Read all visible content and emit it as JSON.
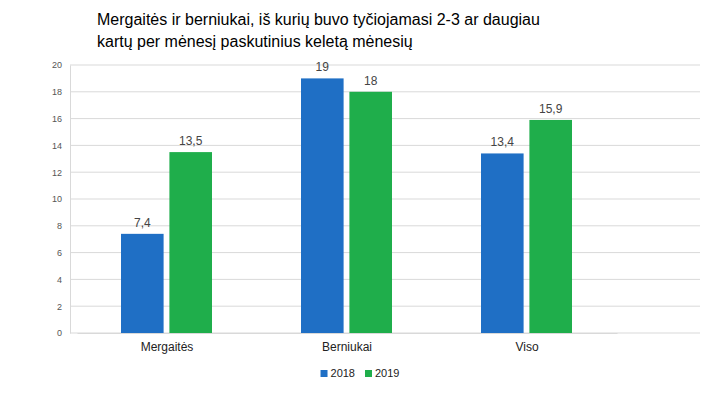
{
  "chart_data": {
    "type": "bar",
    "title": "Mergaitės ir berniukai, iš kurių buvo tyčiojamasi 2-3 ar daugiau kartų per mėnesį paskutinius keletą mėnesių",
    "categories": [
      "Mergaitės",
      "Berniukai",
      "Viso"
    ],
    "series": [
      {
        "name": "2018",
        "color": "#1f6fc5",
        "values": [
          7.4,
          19,
          13.4
        ],
        "value_labels": [
          "7,4",
          "19",
          "13,4"
        ]
      },
      {
        "name": "2019",
        "color": "#1fae4b",
        "values": [
          13.5,
          18,
          15.9
        ],
        "value_labels": [
          "13,5",
          "18",
          "15,9"
        ]
      }
    ],
    "ylim": [
      0,
      20
    ],
    "yticks": [
      0,
      2,
      4,
      6,
      8,
      10,
      12,
      14,
      16,
      18,
      20
    ],
    "grid": true,
    "legend": "bottom",
    "data_labels": true
  }
}
